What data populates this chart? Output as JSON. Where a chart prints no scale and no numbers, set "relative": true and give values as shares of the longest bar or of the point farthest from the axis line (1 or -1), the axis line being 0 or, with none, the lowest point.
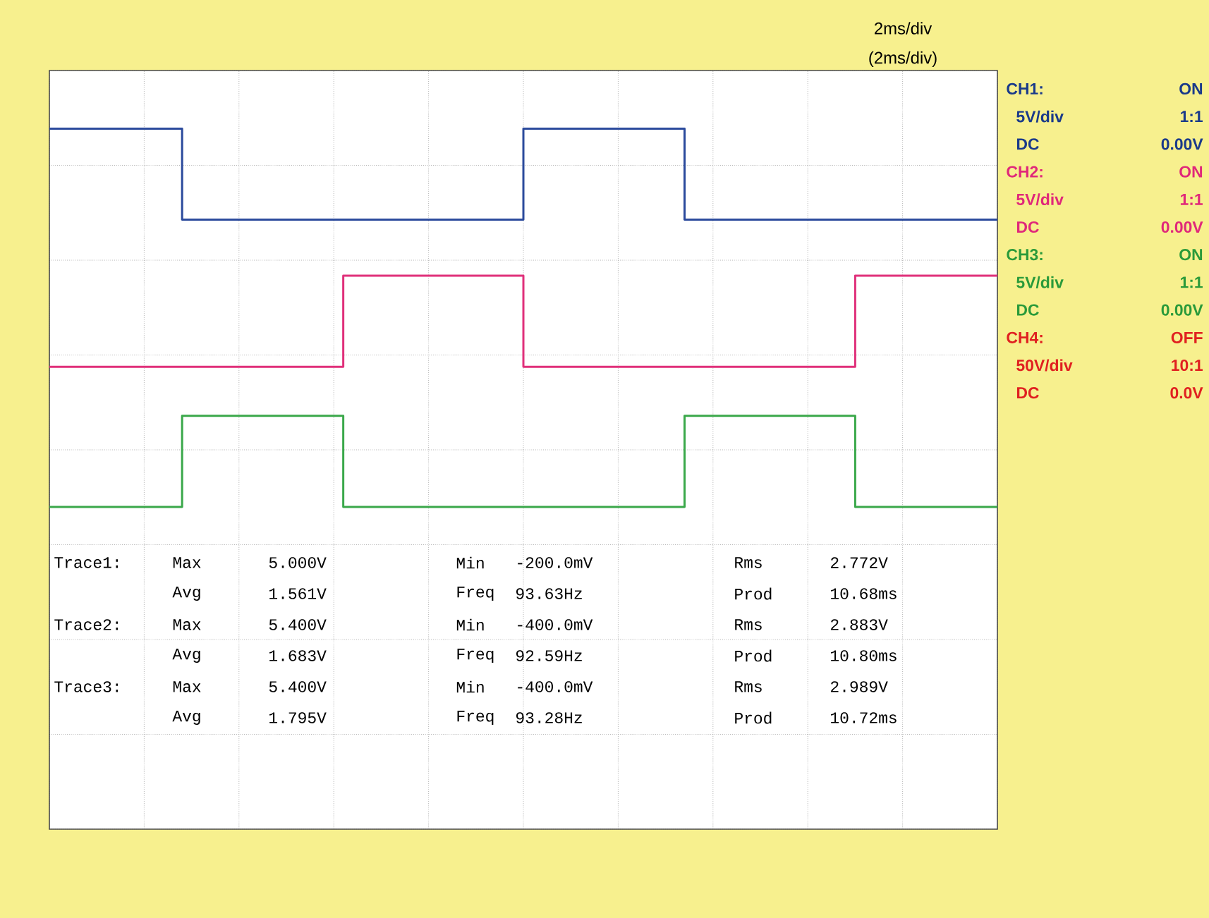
{
  "chart_data": {
    "type": "step",
    "relative": true,
    "categories": [
      null,
      null,
      null,
      null,
      null,
      null,
      null,
      null,
      null,
      null,
      null,
      null,
      null,
      null,
      null,
      null,
      null,
      null,
      null,
      null,
      null,
      null,
      null,
      null,
      null,
      null,
      null,
      null,
      null,
      null,
      null,
      null,
      null,
      null,
      null,
      null,
      null,
      null,
      null,
      null,
      null,
      null,
      null,
      null,
      null,
      null,
      null,
      null,
      null,
      null,
      null,
      null,
      null,
      null,
      null,
      null,
      null,
      null,
      null,
      null,
      null,
      null,
      null,
      null,
      null,
      null,
      null,
      null,
      null,
      null,
      null,
      null,
      null,
      null,
      null,
      null,
      null,
      null,
      null,
      null,
      null,
      null,
      null,
      null,
      null,
      null,
      null,
      null,
      null,
      null,
      null,
      null,
      null,
      null,
      null,
      null,
      null,
      null,
      null,
      null,
      null
    ],
    "grid": true,
    "series": [
      {
        "color": "#2b4a9c",
        "values": [
          1,
          1,
          1,
          1,
          1,
          1,
          1,
          1,
          1,
          1,
          1,
          1,
          1,
          1,
          0.87,
          0.87,
          0.87,
          0.87,
          0.87,
          0.87,
          0.87,
          0.87,
          0.87,
          0.87,
          0.87,
          0.87,
          0.87,
          0.87,
          0.87,
          0.87,
          0.87,
          0.87,
          0.87,
          0.87,
          0.87,
          0.87,
          0.87,
          0.87,
          0.87,
          0.87,
          0.87,
          0.87,
          0.87,
          0.87,
          0.87,
          0.87,
          0.87,
          0.87,
          0.87,
          0.87,
          1,
          1,
          1,
          1,
          1,
          1,
          1,
          1,
          1,
          1,
          1,
          1,
          1,
          1,
          1,
          1,
          1,
          0.87,
          0.87,
          0.87,
          0.87,
          0.87,
          0.87,
          0.87,
          0.87,
          0.87,
          0.87,
          0.87,
          0.87,
          0.87,
          0.87,
          0.87,
          0.87,
          0.87,
          0.87,
          0.87,
          0.87,
          0.87,
          0.87,
          0.87,
          0.87,
          0.87,
          0.87,
          0.87,
          0.87,
          0.87,
          0.87,
          0.87,
          0.87,
          0.87,
          0.87
        ]
      },
      {
        "color": "#e0307a",
        "values": [
          0.66,
          0.66,
          0.66,
          0.66,
          0.66,
          0.66,
          0.66,
          0.66,
          0.66,
          0.66,
          0.66,
          0.66,
          0.66,
          0.66,
          0.66,
          0.66,
          0.66,
          0.66,
          0.66,
          0.66,
          0.66,
          0.66,
          0.66,
          0.66,
          0.66,
          0.66,
          0.66,
          0.66,
          0.66,
          0.66,
          0.66,
          0.79,
          0.79,
          0.79,
          0.79,
          0.79,
          0.79,
          0.79,
          0.79,
          0.79,
          0.79,
          0.79,
          0.79,
          0.79,
          0.79,
          0.79,
          0.79,
          0.79,
          0.79,
          0.79,
          0.66,
          0.66,
          0.66,
          0.66,
          0.66,
          0.66,
          0.66,
          0.66,
          0.66,
          0.66,
          0.66,
          0.66,
          0.66,
          0.66,
          0.66,
          0.66,
          0.66,
          0.66,
          0.66,
          0.66,
          0.66,
          0.66,
          0.66,
          0.66,
          0.66,
          0.66,
          0.66,
          0.66,
          0.66,
          0.66,
          0.66,
          0.66,
          0.66,
          0.66,
          0.66,
          0.79,
          0.79,
          0.79,
          0.79,
          0.79,
          0.79,
          0.79,
          0.79,
          0.79,
          0.79,
          0.79,
          0.79,
          0.79,
          0.79,
          0.79,
          0.79
        ]
      },
      {
        "color": "#3aa84a",
        "values": [
          0.46,
          0.46,
          0.46,
          0.46,
          0.46,
          0.46,
          0.46,
          0.46,
          0.46,
          0.46,
          0.46,
          0.46,
          0.46,
          0.46,
          0.59,
          0.59,
          0.59,
          0.59,
          0.59,
          0.59,
          0.59,
          0.59,
          0.59,
          0.59,
          0.59,
          0.59,
          0.59,
          0.59,
          0.59,
          0.59,
          0.59,
          0.46,
          0.46,
          0.46,
          0.46,
          0.46,
          0.46,
          0.46,
          0.46,
          0.46,
          0.46,
          0.46,
          0.46,
          0.46,
          0.46,
          0.46,
          0.46,
          0.46,
          0.46,
          0.46,
          0.46,
          0.46,
          0.46,
          0.46,
          0.46,
          0.46,
          0.46,
          0.46,
          0.46,
          0.46,
          0.46,
          0.46,
          0.46,
          0.46,
          0.46,
          0.46,
          0.46,
          0.59,
          0.59,
          0.59,
          0.59,
          0.59,
          0.59,
          0.59,
          0.59,
          0.59,
          0.59,
          0.59,
          0.59,
          0.59,
          0.59,
          0.59,
          0.59,
          0.59,
          0.59,
          0.46,
          0.46,
          0.46,
          0.46,
          0.46,
          0.46,
          0.46,
          0.46,
          0.46,
          0.46,
          0.46,
          0.46,
          0.46,
          0.46,
          0.46,
          0.46
        ]
      }
    ],
    "annotations": [
      "2ms/div",
      "(2ms/div)",
      "CH1:",
      "ON",
      "5V/div",
      "1:1",
      "DC",
      "0.00V",
      "CH2:",
      "ON",
      "5V/div",
      "1:1",
      "DC",
      "0.00V",
      "CH3:",
      "ON",
      "5V/div",
      "1:1",
      "DC",
      "0.00V",
      "CH4:",
      "OFF",
      "50V/div",
      "10:1",
      "DC",
      "0.0V",
      "Trace1:",
      "Max",
      "5.000V",
      "Min",
      "-200.0mV",
      "Rms",
      "2.772V",
      "Avg",
      "1.561V",
      "Freq",
      "93.63Hz",
      "Prod",
      "10.68ms",
      "Trace2:",
      "Max",
      "5.400V",
      "Min",
      "-400.0mV",
      "Rms",
      "2.883V",
      "Avg",
      "1.683V",
      "Freq",
      "92.59Hz",
      "Prod",
      "10.80ms",
      "Trace3:",
      "Max",
      "5.400V",
      "Min",
      "-400.0mV",
      "Rms",
      "2.989V",
      "Avg",
      "1.795V",
      "Freq",
      "93.28Hz",
      "Prod",
      "10.72ms"
    ]
  }
}
